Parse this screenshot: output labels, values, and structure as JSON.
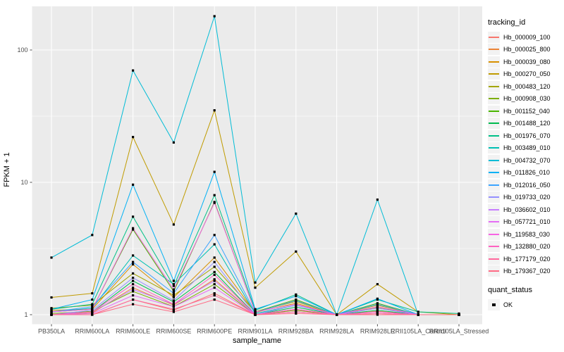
{
  "figure": {
    "background": "#FFFFFF",
    "panel_background": "#EBEBEB",
    "grid_color": "#FFFFFF",
    "axis_text_color": "#4D4D4D",
    "axis_title_color": "#000000",
    "point_color": "#000000"
  },
  "axes": {
    "x_title": "sample_name",
    "y_title": "FPKM + 1",
    "y_scale": "log10",
    "y_tick_labels": [
      "1",
      "10",
      "100"
    ],
    "y_minor_breaks": [
      3.162,
      31.62
    ]
  },
  "legend": {
    "tracking_title": "tracking_id",
    "quant_title": "quant_status",
    "quant_items": [
      {
        "label": "OK",
        "symbol": "filled-square",
        "color": "#000000"
      }
    ]
  },
  "chart_data": {
    "type": "line",
    "title": "",
    "xlabel": "sample_name",
    "ylabel": "FPKM + 1",
    "y_axis": {
      "scale": "log10",
      "ticks": [
        1,
        10,
        100
      ],
      "range": [
        0.85,
        211
      ],
      "grid": true,
      "minor_grid": [
        3.162,
        31.62
      ]
    },
    "legend_position": "right",
    "point_marker": {
      "shape": "filled-square",
      "color": "#000000"
    },
    "categories": [
      "PB350LA",
      "RRIM600LA",
      "RRIM600LE",
      "RRIM600SE",
      "RRIM600PE",
      "RRIM901LA",
      "RRIM928BA",
      "RRIM928LA",
      "RRIM928LE",
      "RRII105LA_Control",
      "RRII105LA_Stressed"
    ],
    "series": [
      {
        "name": "Hb_000009_100",
        "color": "#F8766D",
        "values": [
          1.0,
          1.0,
          1.3,
          1.08,
          1.45,
          1.0,
          1.05,
          1.0,
          1.02,
          1.0,
          1.0
        ]
      },
      {
        "name": "Hb_000025_800",
        "color": "#EB8335",
        "values": [
          1.0,
          1.03,
          1.6,
          1.18,
          1.85,
          1.0,
          1.1,
          1.0,
          1.06,
          1.0,
          1.0
        ]
      },
      {
        "name": "Hb_000039_080",
        "color": "#D89000",
        "values": [
          1.08,
          1.1,
          2.4,
          1.35,
          2.7,
          1.04,
          1.22,
          1.0,
          1.14,
          1.0,
          1.0
        ]
      },
      {
        "name": "Hb_000270_050",
        "color": "#C09B00",
        "values": [
          1.35,
          1.45,
          22.0,
          4.8,
          35.0,
          1.6,
          3.0,
          1.0,
          1.7,
          1.05,
          1.0
        ]
      },
      {
        "name": "Hb_000483_120",
        "color": "#A3A500",
        "values": [
          1.12,
          1.18,
          2.05,
          1.4,
          2.3,
          1.05,
          1.26,
          1.0,
          1.18,
          1.0,
          1.0
        ]
      },
      {
        "name": "Hb_000908_030",
        "color": "#7CAE00",
        "values": [
          1.02,
          1.06,
          1.5,
          1.15,
          1.7,
          1.0,
          1.08,
          1.0,
          1.05,
          1.0,
          1.0
        ]
      },
      {
        "name": "Hb_001152_040",
        "color": "#49B500",
        "values": [
          1.05,
          1.1,
          4.4,
          1.5,
          7.1,
          1.05,
          1.3,
          1.0,
          1.22,
          1.0,
          1.0
        ]
      },
      {
        "name": "Hb_001488_120",
        "color": "#00BB4E",
        "values": [
          1.0,
          1.05,
          1.8,
          1.25,
          2.1,
          1.0,
          1.14,
          1.0,
          1.08,
          1.0,
          1.0
        ]
      },
      {
        "name": "Hb_001976_070",
        "color": "#00C087",
        "values": [
          1.1,
          1.2,
          5.5,
          1.65,
          8.0,
          1.08,
          1.42,
          1.0,
          1.3,
          1.05,
          1.02
        ]
      },
      {
        "name": "Hb_003489_010",
        "color": "#00C0B4",
        "values": [
          1.05,
          1.12,
          2.8,
          1.7,
          3.4,
          1.02,
          1.18,
          1.0,
          1.12,
          1.0,
          1.0
        ]
      },
      {
        "name": "Hb_004732_070",
        "color": "#00BCD6",
        "values": [
          2.7,
          4.0,
          70.0,
          20.0,
          180.0,
          1.75,
          5.8,
          1.0,
          7.4,
          1.0,
          1.0
        ]
      },
      {
        "name": "Hb_011826_010",
        "color": "#00B1F5",
        "values": [
          1.1,
          1.3,
          9.6,
          1.8,
          12.0,
          1.1,
          1.38,
          1.0,
          1.32,
          1.0,
          1.0
        ]
      },
      {
        "name": "Hb_012016_050",
        "color": "#3BA3FF",
        "values": [
          1.05,
          1.15,
          2.5,
          1.45,
          4.0,
          1.04,
          1.28,
          1.0,
          1.2,
          1.0,
          1.0
        ]
      },
      {
        "name": "Hb_019733_020",
        "color": "#9490FF",
        "values": [
          1.0,
          1.08,
          1.9,
          1.28,
          2.5,
          1.0,
          1.18,
          1.0,
          1.12,
          1.0,
          1.0
        ]
      },
      {
        "name": "Hb_036602_010",
        "color": "#C77CFF",
        "values": [
          1.0,
          1.05,
          1.55,
          1.2,
          1.8,
          1.0,
          1.1,
          1.0,
          1.05,
          1.0,
          1.0
        ]
      },
      {
        "name": "Hb_057721_010",
        "color": "#E56DF5",
        "values": [
          1.0,
          1.02,
          1.4,
          1.15,
          1.6,
          1.0,
          1.05,
          1.0,
          1.05,
          1.0,
          1.0
        ]
      },
      {
        "name": "Hb_119583_030",
        "color": "#F763E3",
        "values": [
          1.05,
          1.1,
          4.5,
          1.55,
          7.0,
          1.05,
          1.2,
          1.0,
          1.15,
          1.0,
          1.0
        ]
      },
      {
        "name": "Hb_132880_020",
        "color": "#FF62C1",
        "values": [
          1.0,
          1.05,
          1.7,
          1.2,
          2.0,
          1.0,
          1.1,
          1.0,
          1.05,
          1.0,
          1.0
        ]
      },
      {
        "name": "Hb_177179_020",
        "color": "#FF689C",
        "values": [
          1.0,
          1.0,
          1.3,
          1.1,
          1.4,
          1.0,
          1.05,
          1.0,
          1.02,
          1.0,
          1.0
        ]
      },
      {
        "name": "Hb_179367_020",
        "color": "#FF6B85",
        "values": [
          1.0,
          1.0,
          1.2,
          1.05,
          1.3,
          1.0,
          1.02,
          1.0,
          1.0,
          1.0,
          1.0
        ]
      }
    ]
  }
}
